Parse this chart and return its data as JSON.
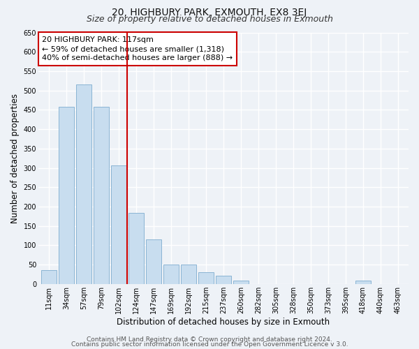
{
  "title": "20, HIGHBURY PARK, EXMOUTH, EX8 3EJ",
  "subtitle": "Size of property relative to detached houses in Exmouth",
  "xlabel": "Distribution of detached houses by size in Exmouth",
  "ylabel": "Number of detached properties",
  "categories": [
    "11sqm",
    "34sqm",
    "57sqm",
    "79sqm",
    "102sqm",
    "124sqm",
    "147sqm",
    "169sqm",
    "192sqm",
    "215sqm",
    "237sqm",
    "260sqm",
    "282sqm",
    "305sqm",
    "328sqm",
    "350sqm",
    "373sqm",
    "395sqm",
    "418sqm",
    "440sqm",
    "463sqm"
  ],
  "values": [
    35,
    458,
    515,
    458,
    307,
    183,
    115,
    50,
    50,
    30,
    22,
    8,
    0,
    0,
    0,
    0,
    0,
    0,
    8,
    0,
    0
  ],
  "bar_color": "#c8ddef",
  "bar_edge_color": "#8ab4d4",
  "vline_x": 5.0,
  "vline_color": "#cc0000",
  "annotation_line1": "20 HIGHBURY PARK: 117sqm",
  "annotation_line2": "← 59% of detached houses are smaller (1,318)",
  "annotation_line3": "40% of semi-detached houses are larger (888) →",
  "annotation_box_color": "#ffffff",
  "annotation_box_edge": "#cc0000",
  "ylim": [
    0,
    650
  ],
  "yticks": [
    0,
    50,
    100,
    150,
    200,
    250,
    300,
    350,
    400,
    450,
    500,
    550,
    600,
    650
  ],
  "footer1": "Contains HM Land Registry data © Crown copyright and database right 2024.",
  "footer2": "Contains public sector information licensed under the Open Government Licence v 3.0.",
  "bg_color": "#eef2f7",
  "grid_color": "#ffffff",
  "title_fontsize": 10,
  "subtitle_fontsize": 9,
  "axis_label_fontsize": 8.5,
  "tick_fontsize": 7,
  "annotation_fontsize": 8,
  "footer_fontsize": 6.5
}
